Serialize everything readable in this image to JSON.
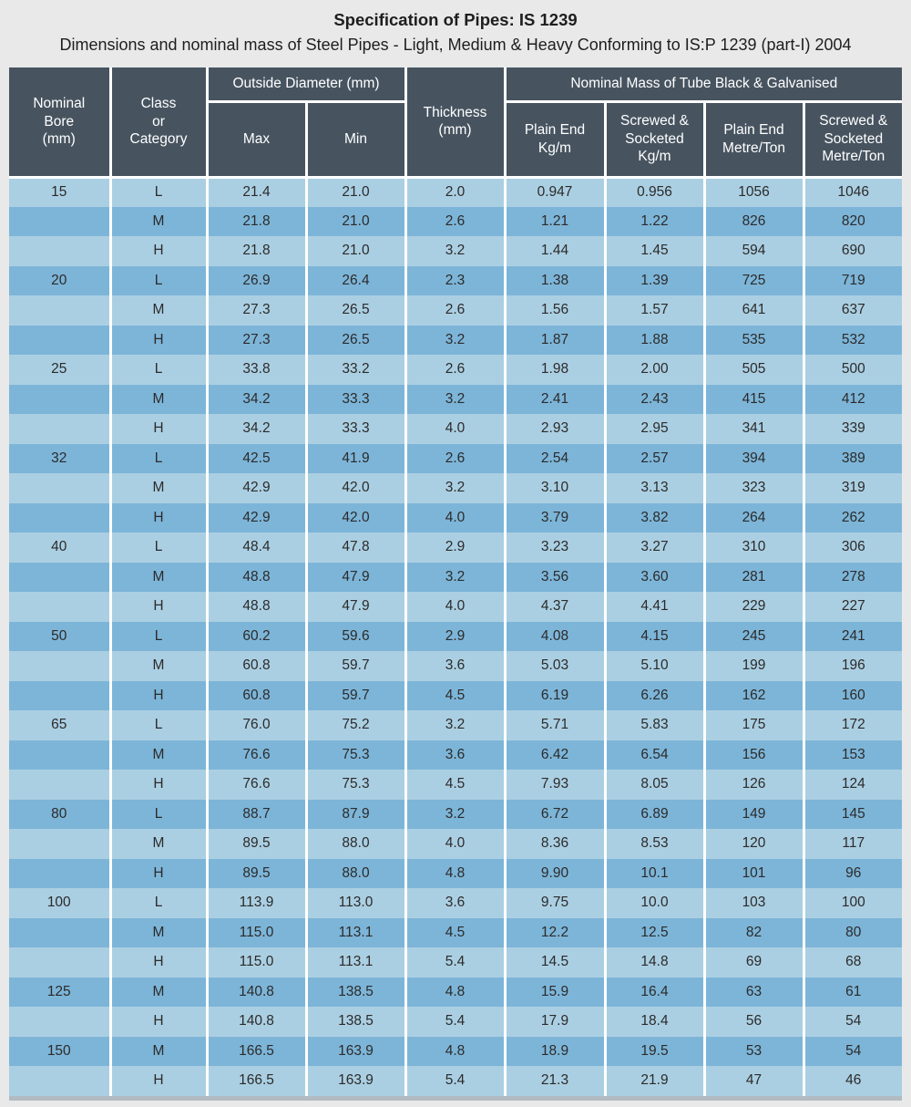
{
  "page": {
    "title": "Specification of Pipes: IS 1239",
    "subtitle": "Dimensions and nominal mass of Steel Pipes - Light, Medium & Heavy Conforming to IS:P 1239 (part-I) 2004"
  },
  "colors": {
    "page_bg": "#e9e9e9",
    "header_bg": "#475460",
    "row_light": "#abcfe2",
    "row_dark": "#7db5d8",
    "grid_line": "#ffffff",
    "bottom_strip": "#b2bbc1",
    "title_text": "#1e1e1e",
    "body_text": "#2b2b2b",
    "header_text": "#ffffff"
  },
  "table": {
    "headers": {
      "nominal_bore": "Nominal\nBore\n(mm)",
      "class_category": "Class\nor\nCategory",
      "outside_diameter": "Outside Diameter (mm)",
      "max": "Max",
      "min": "Min",
      "thickness": "Thickness\n(mm)",
      "nominal_mass": "Nominal Mass of Tube Black & Galvanised",
      "plain_end_kg": "Plain End\nKg/m",
      "screwed_socketed_kg": "Screwed &\nSocketed\nKg/m",
      "plain_end_ton": "Plain End\nMetre/Ton",
      "screwed_socketed_ton": "Screwed &\nSocketed\nMetre/Ton"
    },
    "rows": [
      [
        "15",
        "L",
        "21.4",
        "21.0",
        "2.0",
        "0.947",
        "0.956",
        "1056",
        "1046"
      ],
      [
        "",
        "M",
        "21.8",
        "21.0",
        "2.6",
        "1.21",
        "1.22",
        "826",
        "820"
      ],
      [
        "",
        "H",
        "21.8",
        "21.0",
        "3.2",
        "1.44",
        "1.45",
        "594",
        "690"
      ],
      [
        "20",
        "L",
        "26.9",
        "26.4",
        "2.3",
        "1.38",
        "1.39",
        "725",
        "719"
      ],
      [
        "",
        "M",
        "27.3",
        "26.5",
        "2.6",
        "1.56",
        "1.57",
        "641",
        "637"
      ],
      [
        "",
        "H",
        "27.3",
        "26.5",
        "3.2",
        "1.87",
        "1.88",
        "535",
        "532"
      ],
      [
        "25",
        "L",
        "33.8",
        "33.2",
        "2.6",
        "1.98",
        "2.00",
        "505",
        "500"
      ],
      [
        "",
        "M",
        "34.2",
        "33.3",
        "3.2",
        "2.41",
        "2.43",
        "415",
        "412"
      ],
      [
        "",
        "H",
        "34.2",
        "33.3",
        "4.0",
        "2.93",
        "2.95",
        "341",
        "339"
      ],
      [
        "32",
        "L",
        "42.5",
        "41.9",
        "2.6",
        "2.54",
        "2.57",
        "394",
        "389"
      ],
      [
        "",
        "M",
        "42.9",
        "42.0",
        "3.2",
        "3.10",
        "3.13",
        "323",
        "319"
      ],
      [
        "",
        "H",
        "42.9",
        "42.0",
        "4.0",
        "3.79",
        "3.82",
        "264",
        "262"
      ],
      [
        "40",
        "L",
        "48.4",
        "47.8",
        "2.9",
        "3.23",
        "3.27",
        "310",
        "306"
      ],
      [
        "",
        "M",
        "48.8",
        "47.9",
        "3.2",
        "3.56",
        "3.60",
        "281",
        "278"
      ],
      [
        "",
        "H",
        "48.8",
        "47.9",
        "4.0",
        "4.37",
        "4.41",
        "229",
        "227"
      ],
      [
        "50",
        "L",
        "60.2",
        "59.6",
        "2.9",
        "4.08",
        "4.15",
        "245",
        "241"
      ],
      [
        "",
        "M",
        "60.8",
        "59.7",
        "3.6",
        "5.03",
        "5.10",
        "199",
        "196"
      ],
      [
        "",
        "H",
        "60.8",
        "59.7",
        "4.5",
        "6.19",
        "6.26",
        "162",
        "160"
      ],
      [
        "65",
        "L",
        "76.0",
        "75.2",
        "3.2",
        "5.71",
        "5.83",
        "175",
        "172"
      ],
      [
        "",
        "M",
        "76.6",
        "75.3",
        "3.6",
        "6.42",
        "6.54",
        "156",
        "153"
      ],
      [
        "",
        "H",
        "76.6",
        "75.3",
        "4.5",
        "7.93",
        "8.05",
        "126",
        "124"
      ],
      [
        "80",
        "L",
        "88.7",
        "87.9",
        "3.2",
        "6.72",
        "6.89",
        "149",
        "145"
      ],
      [
        "",
        "M",
        "89.5",
        "88.0",
        "4.0",
        "8.36",
        "8.53",
        "120",
        "117"
      ],
      [
        "",
        "H",
        "89.5",
        "88.0",
        "4.8",
        "9.90",
        "10.1",
        "101",
        "96"
      ],
      [
        "100",
        "L",
        "113.9",
        "113.0",
        "3.6",
        "9.75",
        "10.0",
        "103",
        "100"
      ],
      [
        "",
        "M",
        "115.0",
        "113.1",
        "4.5",
        "12.2",
        "12.5",
        "82",
        "80"
      ],
      [
        "",
        "H",
        "115.0",
        "113.1",
        "5.4",
        "14.5",
        "14.8",
        "69",
        "68"
      ],
      [
        "125",
        "M",
        "140.8",
        "138.5",
        "4.8",
        "15.9",
        "16.4",
        "63",
        "61"
      ],
      [
        "",
        "H",
        "140.8",
        "138.5",
        "5.4",
        "17.9",
        "18.4",
        "56",
        "54"
      ],
      [
        "150",
        "M",
        "166.5",
        "163.9",
        "4.8",
        "18.9",
        "19.5",
        "53",
        "54"
      ],
      [
        "",
        "H",
        "166.5",
        "163.9",
        "5.4",
        "21.3",
        "21.9",
        "47",
        "46"
      ]
    ]
  }
}
